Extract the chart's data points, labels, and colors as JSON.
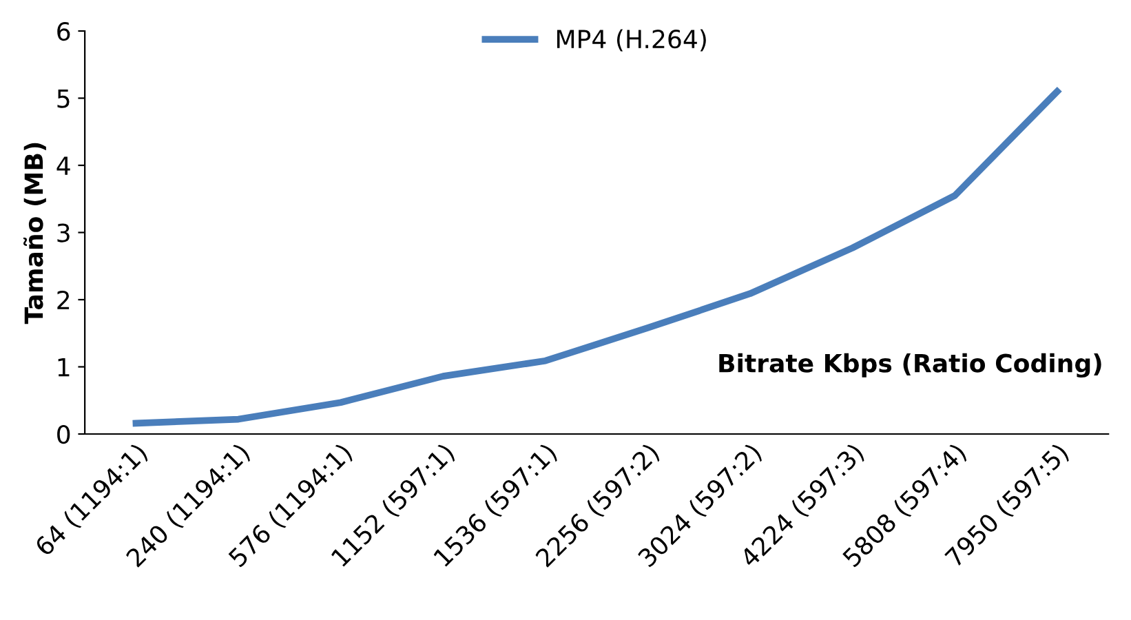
{
  "chart_data": {
    "type": "line",
    "xlabel": "Bitrate Kbps (Ratio Coding)",
    "ylabel": "Tamaño (MB)",
    "categories": [
      "64 (1194:1)",
      "240 (1194:1)",
      "576 (1194:1)",
      "1152 (597:1)",
      "1536 (597:1)",
      "2256 (597:2)",
      "3024 (597:2)",
      "4224 (597:3)",
      "5808 (597:4)",
      "7950 (597:5)"
    ],
    "series": [
      {
        "name": "MP4 (H.264)",
        "color": "#4a7ebb",
        "values": [
          0.16,
          0.22,
          0.47,
          0.86,
          1.09,
          1.58,
          2.09,
          2.77,
          3.55,
          5.1
        ]
      }
    ],
    "ylim": [
      0,
      6
    ],
    "yticks": [
      0,
      1,
      2,
      3,
      4,
      5,
      6
    ],
    "grid": false,
    "legend": "top",
    "marker": "none",
    "line_style": "solid"
  }
}
